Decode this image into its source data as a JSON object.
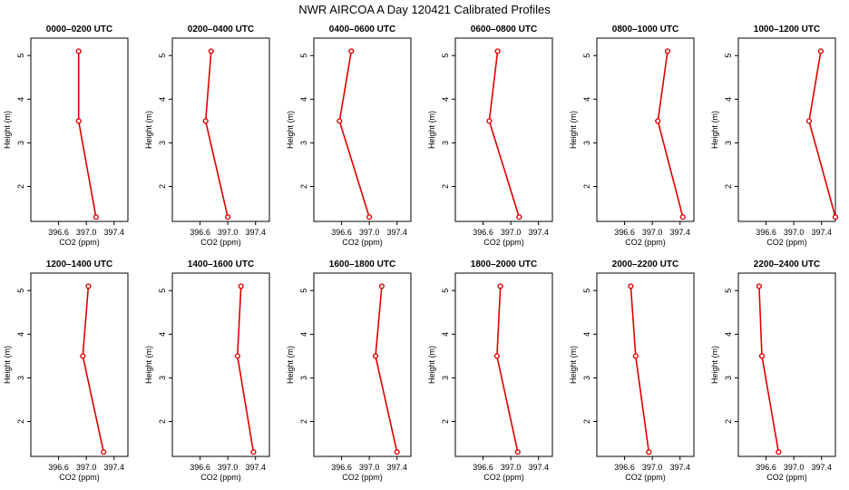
{
  "figure": {
    "title": "NWR AIRCOA A  Day 120421  Calibrated Profiles"
  },
  "colors": {
    "series": "#e00000",
    "axis": "#000000",
    "background": "#ffffff"
  },
  "chart_data": [
    {
      "type": "line",
      "title": "0000–0200 UTC",
      "xlabel": "CO2 (ppm)",
      "ylabel": "Height (m)",
      "xlim": [
        396.2,
        397.6
      ],
      "ylim": [
        1.2,
        5.4
      ],
      "xticks": [
        "396.6",
        "397.0",
        "397.4"
      ],
      "yticks": [
        "2",
        "3",
        "4",
        "5"
      ],
      "x": [
        396.89,
        396.89,
        397.14
      ],
      "y": [
        5.1,
        3.5,
        1.3
      ]
    },
    {
      "type": "line",
      "title": "0200–0400 UTC",
      "xlabel": "CO2 (ppm)",
      "ylabel": "Height (m)",
      "xlim": [
        396.2,
        397.6
      ],
      "ylim": [
        1.2,
        5.4
      ],
      "xticks": [
        "396.6",
        "397.0",
        "397.4"
      ],
      "yticks": [
        "2",
        "3",
        "4",
        "5"
      ],
      "x": [
        396.76,
        396.68,
        397.0
      ],
      "y": [
        5.1,
        3.5,
        1.3
      ]
    },
    {
      "type": "line",
      "title": "0400–0600 UTC",
      "xlabel": "CO2 (ppm)",
      "ylabel": "Height (m)",
      "xlim": [
        396.2,
        397.6
      ],
      "ylim": [
        1.2,
        5.4
      ],
      "xticks": [
        "396.6",
        "397.0",
        "397.4"
      ],
      "yticks": [
        "2",
        "3",
        "4",
        "5"
      ],
      "x": [
        396.74,
        396.57,
        397.0
      ],
      "y": [
        5.1,
        3.5,
        1.3
      ]
    },
    {
      "type": "line",
      "title": "0600–0800 UTC",
      "xlabel": "CO2 (ppm)",
      "ylabel": "Height (m)",
      "xlim": [
        396.2,
        397.6
      ],
      "ylim": [
        1.2,
        5.4
      ],
      "xticks": [
        "396.6",
        "397.0",
        "397.4"
      ],
      "yticks": [
        "2",
        "3",
        "4",
        "5"
      ],
      "x": [
        396.81,
        396.69,
        397.12
      ],
      "y": [
        5.1,
        3.5,
        1.3
      ]
    },
    {
      "type": "line",
      "title": "0800–1000 UTC",
      "xlabel": "CO2 (ppm)",
      "ylabel": "Height (m)",
      "xlim": [
        396.2,
        397.6
      ],
      "ylim": [
        1.2,
        5.4
      ],
      "xticks": [
        "396.6",
        "397.0",
        "397.4"
      ],
      "yticks": [
        "2",
        "3",
        "4",
        "5"
      ],
      "x": [
        397.22,
        397.08,
        397.44
      ],
      "y": [
        5.1,
        3.5,
        1.3
      ]
    },
    {
      "type": "line",
      "title": "1000–1200 UTC",
      "xlabel": "CO2 (ppm)",
      "ylabel": "Height (m)",
      "xlim": [
        396.2,
        397.6
      ],
      "ylim": [
        1.2,
        5.4
      ],
      "xticks": [
        "396.6",
        "397.0",
        "397.4"
      ],
      "yticks": [
        "2",
        "3",
        "4",
        "5"
      ],
      "x": [
        397.39,
        397.22,
        397.6
      ],
      "y": [
        5.1,
        3.5,
        1.3
      ]
    },
    {
      "type": "line",
      "title": "1200–1400 UTC",
      "xlabel": "CO2 (ppm)",
      "ylabel": "Height (m)",
      "xlim": [
        396.2,
        397.6
      ],
      "ylim": [
        1.2,
        5.4
      ],
      "xticks": [
        "396.6",
        "397.0",
        "397.4"
      ],
      "yticks": [
        "2",
        "3",
        "4",
        "5"
      ],
      "x": [
        397.03,
        396.95,
        397.25
      ],
      "y": [
        5.1,
        3.5,
        1.3
      ]
    },
    {
      "type": "line",
      "title": "1400–1600 UTC",
      "xlabel": "CO2 (ppm)",
      "ylabel": "Height (m)",
      "xlim": [
        396.2,
        397.6
      ],
      "ylim": [
        1.2,
        5.4
      ],
      "xticks": [
        "396.6",
        "397.0",
        "397.4"
      ],
      "yticks": [
        "2",
        "3",
        "4",
        "5"
      ],
      "x": [
        397.19,
        397.14,
        397.37
      ],
      "y": [
        5.1,
        3.5,
        1.3
      ]
    },
    {
      "type": "line",
      "title": "1600–1800 UTC",
      "xlabel": "CO2 (ppm)",
      "ylabel": "Height (m)",
      "xlim": [
        396.2,
        397.6
      ],
      "ylim": [
        1.2,
        5.4
      ],
      "xticks": [
        "396.6",
        "397.0",
        "397.4"
      ],
      "yticks": [
        "2",
        "3",
        "4",
        "5"
      ],
      "x": [
        397.18,
        397.09,
        397.4
      ],
      "y": [
        5.1,
        3.5,
        1.3
      ]
    },
    {
      "type": "line",
      "title": "1800–2000 UTC",
      "xlabel": "CO2 (ppm)",
      "ylabel": "Height (m)",
      "xlim": [
        396.2,
        397.6
      ],
      "ylim": [
        1.2,
        5.4
      ],
      "xticks": [
        "396.6",
        "397.0",
        "397.4"
      ],
      "yticks": [
        "2",
        "3",
        "4",
        "5"
      ],
      "x": [
        396.85,
        396.8,
        397.1
      ],
      "y": [
        5.1,
        3.5,
        1.3
      ]
    },
    {
      "type": "line",
      "title": "2000–2200 UTC",
      "xlabel": "CO2 (ppm)",
      "ylabel": "Height (m)",
      "xlim": [
        396.2,
        397.6
      ],
      "ylim": [
        1.2,
        5.4
      ],
      "xticks": [
        "396.6",
        "397.0",
        "397.4"
      ],
      "yticks": [
        "2",
        "3",
        "4",
        "5"
      ],
      "x": [
        396.69,
        396.76,
        396.95
      ],
      "y": [
        5.1,
        3.5,
        1.3
      ]
    },
    {
      "type": "line",
      "title": "2200–2400 UTC",
      "xlabel": "CO2 (ppm)",
      "ylabel": "Height (m)",
      "xlim": [
        396.2,
        397.6
      ],
      "ylim": [
        1.2,
        5.4
      ],
      "xticks": [
        "396.6",
        "397.0",
        "397.4"
      ],
      "yticks": [
        "2",
        "3",
        "4",
        "5"
      ],
      "x": [
        396.5,
        396.54,
        396.78
      ],
      "y": [
        5.1,
        3.5,
        1.3
      ]
    }
  ]
}
